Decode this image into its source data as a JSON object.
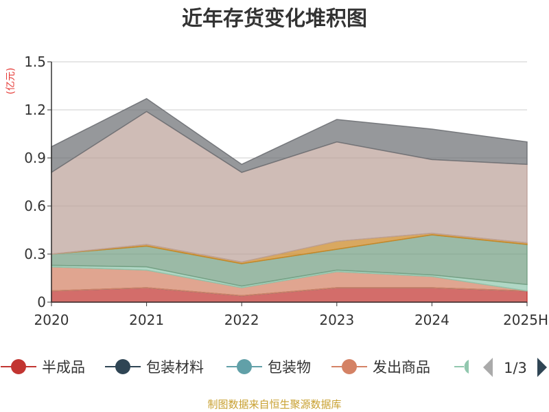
{
  "chart_data": {
    "type": "area",
    "stacked": true,
    "title": "近年存货变化堆积图",
    "unit": "(亿元)",
    "categories": [
      "2020",
      "2021",
      "2022",
      "2023",
      "2024",
      "2025H"
    ],
    "ylim": [
      0,
      1.5
    ],
    "yticks": [
      "0",
      "0.3",
      "0.6",
      "0.9",
      "1.2",
      "1.5"
    ],
    "grid": true,
    "legend_position": "bottom",
    "series": [
      {
        "name": "半成品",
        "color": "#c23531",
        "values": [
          0.07,
          0.09,
          0.04,
          0.09,
          0.09,
          0.07
        ]
      },
      {
        "name": "包装材料",
        "color": "#2f4554",
        "values": [
          0.0,
          0.0,
          0.0,
          0.0,
          0.0,
          0.0
        ]
      },
      {
        "name": "包装物",
        "color": "#61a0a8",
        "values": [
          0.0,
          0.0,
          0.0,
          0.0,
          0.0,
          0.0
        ]
      },
      {
        "name": "发出商品",
        "color": "#d48265",
        "values": [
          0.15,
          0.11,
          0.05,
          0.1,
          0.07,
          0.0
        ]
      },
      {
        "name": "",
        "color": "#91c7ae",
        "values": [
          0.01,
          0.02,
          0.01,
          0.01,
          0.01,
          0.04
        ]
      },
      {
        "name": "",
        "color": "#749f83",
        "values": [
          0.07,
          0.13,
          0.14,
          0.13,
          0.25,
          0.25
        ]
      },
      {
        "name": "",
        "color": "#ca8622",
        "values": [
          0.0,
          0.01,
          0.01,
          0.05,
          0.01,
          0.01
        ]
      },
      {
        "name": "",
        "color": "#bda29a",
        "values": [
          0.51,
          0.83,
          0.56,
          0.62,
          0.46,
          0.49
        ]
      },
      {
        "name": "",
        "color": "#6e7074",
        "values": [
          0.16,
          0.08,
          0.05,
          0.14,
          0.19,
          0.14
        ]
      }
    ],
    "legend_page": "1/3"
  },
  "footer": {
    "source": "制图数据来自恒生聚源数据库"
  }
}
